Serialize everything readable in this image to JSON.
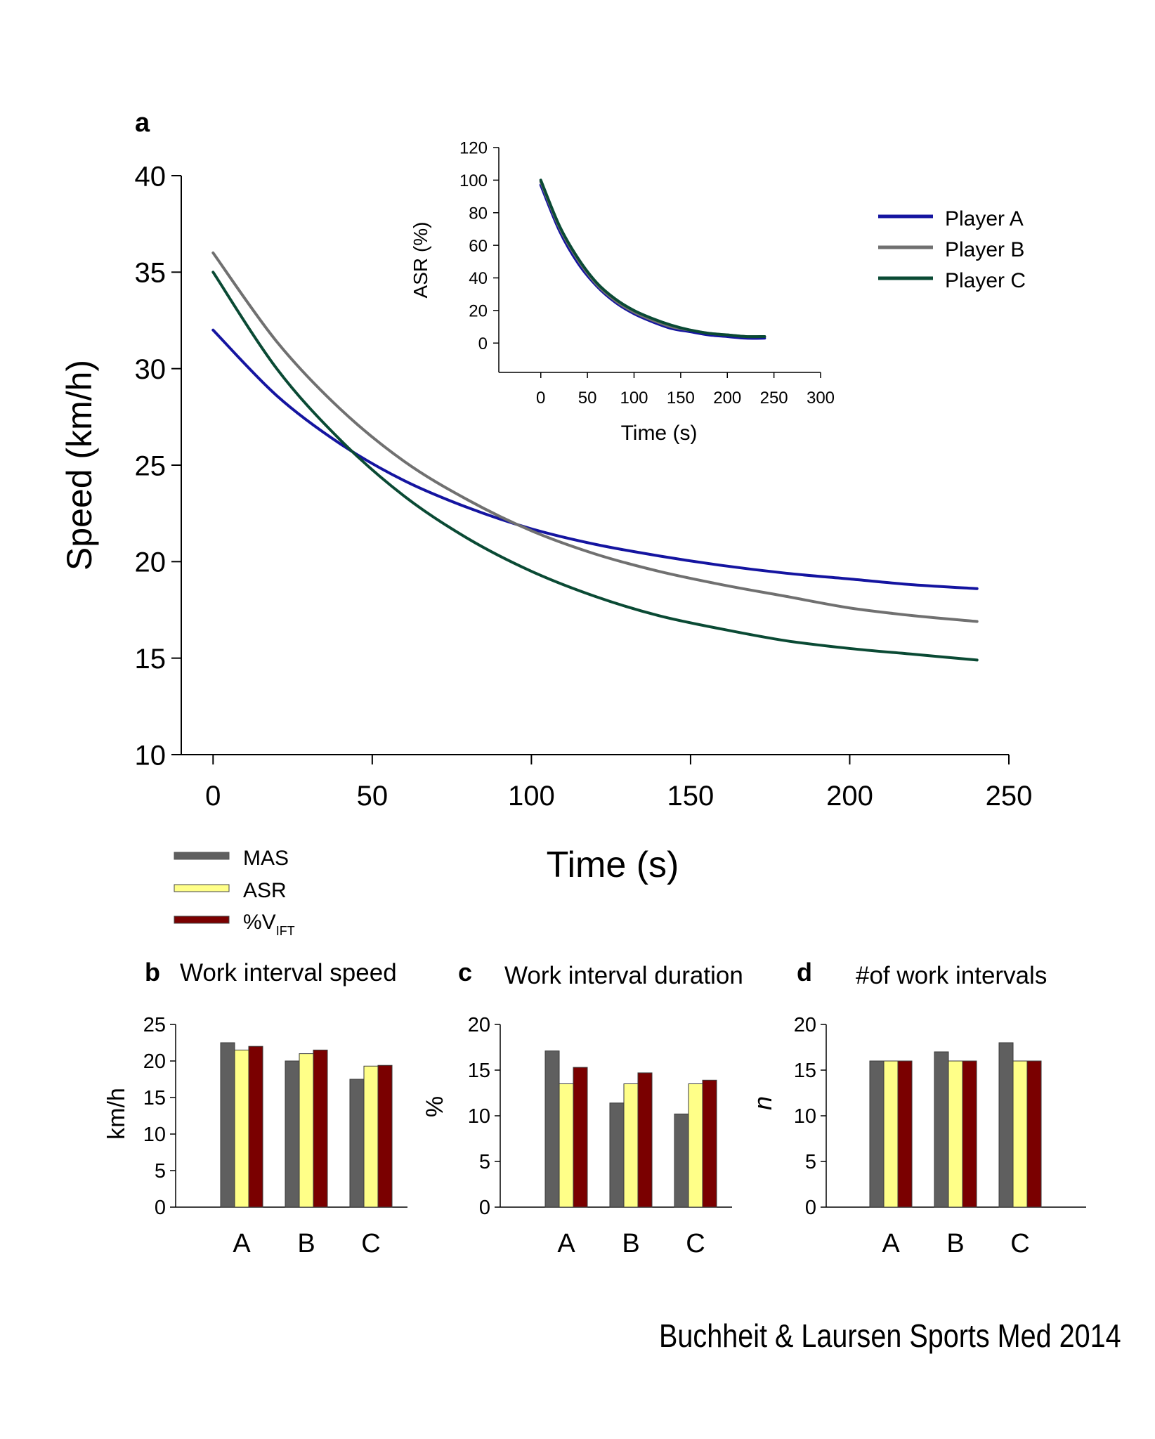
{
  "credit": "Buchheit & Laursen Sports Med 2014",
  "colors": {
    "player_a": "#1414a0",
    "player_b": "#707070",
    "player_c": "#0a4a34",
    "mas": "#5f5f5f",
    "asr": "#ffff88",
    "vift": "#7a0000"
  },
  "chart_data": [
    {
      "id": "a",
      "panel_letter": "a",
      "type": "line",
      "xlabel": "Time (s)",
      "ylabel": "Speed (km/h)",
      "xlim": [
        -10,
        250
      ],
      "ylim": [
        10,
        40
      ],
      "xticks": [
        0,
        50,
        100,
        150,
        200,
        250
      ],
      "yticks": [
        10,
        15,
        20,
        25,
        30,
        35,
        40
      ],
      "legend": {
        "placement": "top-right"
      },
      "x": [
        0,
        20,
        40,
        60,
        80,
        100,
        120,
        140,
        160,
        180,
        200,
        220,
        240
      ],
      "series": [
        {
          "name": "Player A",
          "color": "#1414a0",
          "values": [
            32.0,
            28.6,
            26.1,
            24.2,
            22.8,
            21.7,
            20.9,
            20.3,
            19.8,
            19.4,
            19.1,
            18.8,
            18.6
          ]
        },
        {
          "name": "Player B",
          "color": "#707070",
          "values": [
            36.0,
            31.4,
            27.9,
            25.2,
            23.2,
            21.6,
            20.4,
            19.5,
            18.8,
            18.2,
            17.6,
            17.2,
            16.9
          ]
        },
        {
          "name": "Player C",
          "color": "#0a4a34",
          "values": [
            35.0,
            30.0,
            26.3,
            23.4,
            21.2,
            19.5,
            18.2,
            17.2,
            16.5,
            15.9,
            15.5,
            15.2,
            14.9
          ]
        }
      ]
    },
    {
      "id": "inset",
      "type": "line",
      "xlabel": "Time (s)",
      "ylabel": "ASR (%)",
      "xlim": [
        -45,
        300
      ],
      "ylim": [
        -18,
        120
      ],
      "xticks": [
        0,
        50,
        100,
        150,
        200,
        250,
        300
      ],
      "yticks": [
        0,
        20,
        40,
        60,
        80,
        100,
        120
      ],
      "x": [
        0,
        20,
        40,
        60,
        80,
        100,
        120,
        140,
        160,
        180,
        200,
        220,
        240
      ],
      "series": [
        {
          "name": "Player A",
          "color": "#1414a0",
          "values": [
            97,
            69,
            49,
            35,
            25,
            18,
            13,
            9,
            7,
            5,
            4,
            3,
            3
          ]
        },
        {
          "name": "Player B",
          "color": "#707070",
          "values": [
            99,
            71,
            51,
            36,
            26,
            19,
            14,
            10,
            8,
            6,
            5,
            4,
            4
          ]
        },
        {
          "name": "Player C",
          "color": "#0a4a34",
          "values": [
            100,
            72,
            52,
            37,
            27,
            20,
            15,
            11,
            8,
            6,
            5,
            4,
            4
          ]
        }
      ]
    },
    {
      "id": "b",
      "panel_letter": "b",
      "type": "bar",
      "title": "Work interval speed",
      "ylabel": "km/h",
      "ylim": [
        0,
        25
      ],
      "yticks": [
        0,
        5,
        10,
        15,
        20,
        25
      ],
      "categories": [
        "A",
        "B",
        "C"
      ],
      "series": [
        {
          "name": "MAS",
          "color": "#5f5f5f",
          "values": [
            22.5,
            20.0,
            17.5
          ]
        },
        {
          "name": "ASR",
          "color": "#ffff88",
          "values": [
            21.5,
            21.0,
            19.3
          ]
        },
        {
          "name": "%V",
          "name_sub": "IFT",
          "color": "#7a0000",
          "values": [
            22.0,
            21.5,
            19.4
          ]
        }
      ]
    },
    {
      "id": "c",
      "panel_letter": "c",
      "type": "bar",
      "title": "Work interval duration",
      "ylabel": "%",
      "ylim": [
        0,
        20
      ],
      "yticks": [
        0,
        5,
        10,
        15,
        20
      ],
      "categories": [
        "A",
        "B",
        "C"
      ],
      "series": [
        {
          "name": "MAS",
          "color": "#5f5f5f",
          "values": [
            17.1,
            11.4,
            10.2
          ]
        },
        {
          "name": "ASR",
          "color": "#ffff88",
          "values": [
            13.5,
            13.5,
            13.5
          ]
        },
        {
          "name": "%V",
          "name_sub": "IFT",
          "color": "#7a0000",
          "values": [
            15.3,
            14.7,
            13.9
          ]
        }
      ]
    },
    {
      "id": "d",
      "panel_letter": "d",
      "type": "bar",
      "title": "#of work intervals",
      "ylabel": "n",
      "ylim": [
        0,
        20
      ],
      "yticks": [
        0,
        5,
        10,
        15,
        20
      ],
      "categories": [
        "A",
        "B",
        "C"
      ],
      "series": [
        {
          "name": "MAS",
          "color": "#5f5f5f",
          "values": [
            16,
            17,
            18
          ]
        },
        {
          "name": "ASR",
          "color": "#ffff88",
          "values": [
            16,
            16,
            16
          ]
        },
        {
          "name": "%V",
          "name_sub": "IFT",
          "color": "#7a0000",
          "values": [
            16,
            16,
            16
          ]
        }
      ]
    }
  ],
  "bar_legend": [
    {
      "label": "MAS",
      "color": "#5f5f5f"
    },
    {
      "label": "ASR",
      "color": "#ffff88"
    },
    {
      "label": "%V",
      "sub": "IFT",
      "color": "#7a0000"
    }
  ]
}
